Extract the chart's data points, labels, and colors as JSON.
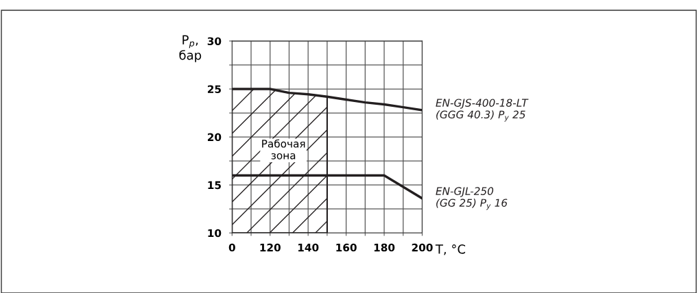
{
  "chart_data": {
    "type": "line",
    "xlabel": "T, °C",
    "ylabel": "P$_{р}$,\nбар",
    "categories": [
      "0",
      null,
      "120",
      null,
      "140",
      null,
      "160",
      null,
      "180",
      null,
      "200"
    ],
    "ylim": [
      10,
      30
    ],
    "yticks": [
      10,
      {
        "value": 12.5,
        "label": null
      },
      15,
      {
        "value": 17.5,
        "label": null
      },
      20,
      {
        "value": 22.5,
        "label": null
      },
      25,
      {
        "value": 27.5,
        "label": null
      },
      30
    ],
    "grid": true,
    "legend": false,
    "marker": "none",
    "line_style": "solid",
    "series": [
      {
        "name": "EN-GJS-400-18-LT\n(GGG 40.3) P$_{y}$ 25",
        "color": "#231f20",
        "values": [
          25,
          25,
          25,
          24.6,
          24.45,
          24.2,
          23.9,
          23.6,
          23.4,
          23.1,
          22.8
        ]
      },
      {
        "name": "EN-GJL-250\n(GG 25) P$_{y}$ 16",
        "color": "#231f20",
        "values": [
          16,
          16,
          16,
          16,
          16,
          16,
          16,
          16,
          16,
          14.8,
          13.6
        ]
      }
    ],
    "annotations": [
      "Рабочая\nзона"
    ]
  }
}
